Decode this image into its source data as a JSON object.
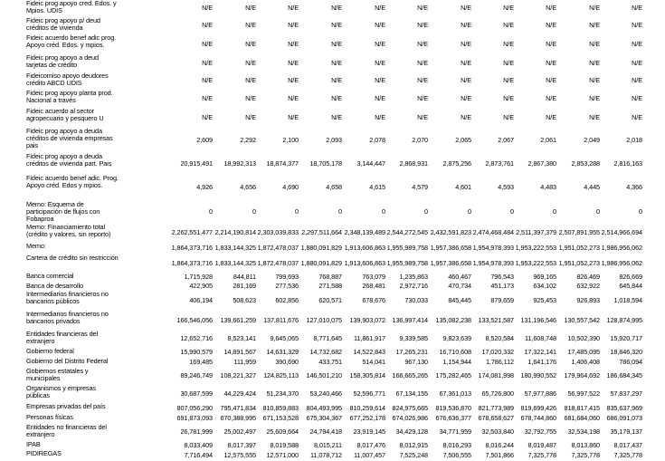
{
  "rows": [
    {
      "label": "Fideic prog apoyo cred. Edos. y Mpios. UDIS",
      "values": [
        "N/E",
        "N/E",
        "N/E",
        "N/E",
        "N/E",
        "N/E",
        "N/E",
        "N/E",
        "N/E",
        "N/E",
        "N/E"
      ]
    },
    {
      "label": "Fideic prog apoyo p/ deud créditos de vivienda",
      "values": [
        "N/E",
        "N/E",
        "N/E",
        "N/E",
        "N/E",
        "N/E",
        "N/E",
        "N/E",
        "N/E",
        "N/E",
        "N/E"
      ]
    },
    {
      "label": "Fideic acuerdo benef adic prog. Apoyo créd. Edos. y mpios.",
      "values": [
        "N/E",
        "N/E",
        "N/E",
        "N/E",
        "N/E",
        "N/E",
        "N/E",
        "N/E",
        "N/E",
        "N/E",
        "N/E"
      ]
    },
    {
      "label": "Fideic prog apoyo a deud tarjetas de crédito",
      "values": [
        "N/E",
        "N/E",
        "N/E",
        "N/E",
        "N/E",
        "N/E",
        "N/E",
        "N/E",
        "N/E",
        "N/E",
        "N/E"
      ]
    },
    {
      "label": "Fideicomiso apoyo deudores crédito ABCD UDIS",
      "values": [
        "N/E",
        "N/E",
        "N/E",
        "N/E",
        "N/E",
        "N/E",
        "N/E",
        "N/E",
        "N/E",
        "N/E",
        "N/E"
      ]
    },
    {
      "label": "Fideic prog apoyo planta prod. Nacional a través",
      "values": [
        "N/E",
        "N/E",
        "N/E",
        "N/E",
        "N/E",
        "N/E",
        "N/E",
        "N/E",
        "N/E",
        "N/E",
        "N/E"
      ]
    },
    {
      "label": "Fideic acuerdo al sector agropecuario y pesquero U",
      "values": [
        "N/E",
        "N/E",
        "N/E",
        "N/E",
        "N/E",
        "N/E",
        "N/E",
        "N/E",
        "N/E",
        "N/E",
        "N/E"
      ]
    },
    {
      "label": "Fideic prog apoyo a deuda créditos de vivienda empresas pais",
      "values": [
        "2,609",
        "2,292",
        "2,100",
        "2,093",
        "2,078",
        "2,070",
        "2,065",
        "2,067",
        "2,061",
        "2,049",
        "2,018"
      ]
    },
    {
      "label": "Fideic prog apoyo a deuda créditos de vivienda part. Pais",
      "values": [
        "20,915,491",
        "18,992,313",
        "18,874,377",
        "18,705,178",
        "3,144,447",
        "2,868,931",
        "2,875,256",
        "2,873,761",
        "2,867,380",
        "2,853,288",
        "2,816,163"
      ]
    },
    {
      "label": "Fideic acuerdo benef adic. Prog. Apoyo créd. Edos y mpios.",
      "values": [
        "4,926",
        "4,656",
        "4,690",
        "4,658",
        "4,615",
        "4,579",
        "4,601",
        "4,593",
        "4,483",
        "4,445",
        "4,366"
      ]
    },
    {
      "label": "Memo: Esquema de participación de flujos con Fobaproa",
      "values": [
        "0",
        "0",
        "0",
        "0",
        "0",
        "0",
        "0",
        "0",
        "0",
        "0",
        "0"
      ]
    },
    {
      "label": "Memo: Financiamiento total (crédito y valores, sin reporto)",
      "values": [
        "2,262,551,477",
        "2,214,190,814",
        "2,303,039,833",
        "2,297,511,664",
        "2,348,139,489",
        "2,544,272,545",
        "2,432,591,823",
        "2,474,468,484",
        "2,511,397,379",
        "2,507,891,955",
        "2,514,966,694"
      ]
    },
    {
      "label": "Memo:",
      "values": [
        "1,864,373,716",
        "1,833,144,325",
        "1,872,478,037",
        "1,880,091,829",
        "1,913,606,863",
        "1,955,989,758",
        "1,957,386,658",
        "1,954,978,393",
        "1,953,222,553",
        "1,951,052,273",
        "1,986,956,062"
      ]
    },
    {
      "label": "Cartera de crédito sin restricción",
      "values": [
        "1,864,373,716",
        "1,833,144,325",
        "1,872,478,037",
        "1,880,091,829",
        "1,913,606,863",
        "1,955,989,758",
        "1,957,386,658",
        "1,954,978,393",
        "1,953,222,553",
        "1,951,052,273",
        "1,986,956,062"
      ]
    },
    {
      "label": "Banca comercial",
      "values": [
        "1,715,928",
        "844,811",
        "799,693",
        "768,887",
        "763,079",
        "1,235,863",
        "460,467",
        "796,543",
        "969,165",
        "826,469",
        "826,669"
      ]
    },
    {
      "label": "Banca de desarrollo",
      "values": [
        "422,905",
        "281,169",
        "277,536",
        "271,588",
        "268,481",
        "2,972,716",
        "470,734",
        "451,173",
        "634,102",
        "632,922",
        "645,844"
      ]
    },
    {
      "label": "Intermediarios financieros no bancarios públicos",
      "values": [
        "406,194",
        "508,623",
        "602,856",
        "620,571",
        "678,676",
        "730,033",
        "845,445",
        "879,659",
        "925,453",
        "926,893",
        "1,018,594"
      ]
    },
    {
      "label": "Intermediarios financieros no bancarios privados",
      "values": [
        "166,546,056",
        "139,661,259",
        "137,811,676",
        "127,010,075",
        "139,903,072",
        "136,997,414",
        "135,082,238",
        "133,521,587",
        "131,196,546",
        "130,557,542",
        "128,874,995"
      ]
    },
    {
      "label": "Entidades financieras del extranjero",
      "values": [
        "12,652,716",
        "8,523,141",
        "9,645,065",
        "8,771,645",
        "11,861,917",
        "9,339,585",
        "9,823,639",
        "8,520,584",
        "11,608,748",
        "10,502,390",
        "15,920,717"
      ]
    },
    {
      "label": "Gobierno federal",
      "values": [
        "15,990,579",
        "14,891,567",
        "14,631,329",
        "14,732,682",
        "14,522,843",
        "17,265,231",
        "16,710,608",
        "17,020,332",
        "17,322,141",
        "17,485,095",
        "18,846,320"
      ]
    },
    {
      "label": "Gobierno del Distrito Federal",
      "values": [
        "169,485",
        "111,959",
        "390,690",
        "433,751",
        "514,041",
        "967,130",
        "1,154,944",
        "1,786,112",
        "1,641,176",
        "1,406,408",
        "786,094"
      ]
    },
    {
      "label": "Gobiernos estatales y municipales",
      "values": [
        "89,246,749",
        "108,221,327",
        "124,825,113",
        "146,501,210",
        "158,305,814",
        "166,665,265",
        "175,282,465",
        "174,081,998",
        "180,990,552",
        "179,964,692",
        "186,684,345"
      ]
    },
    {
      "label": "Organismos y empresas públicas",
      "values": [
        "30,687,599",
        "44,229,424",
        "51,234,370",
        "53,240,466",
        "52,596,771",
        "67,134,155",
        "67,361,013",
        "65,726,800",
        "57,977,886",
        "56,997,522",
        "57,837,297"
      ]
    },
    {
      "label": "Empresas privadas del país",
      "values": [
        "807,056,290",
        "795,471,834",
        "810,859,883",
        "804,493,995",
        "810,259,614",
        "824,975,665",
        "819,536,870",
        "821,773,989",
        "819,699,426",
        "818,817,415",
        "835,637,969"
      ]
    },
    {
      "label": "Personas físicas",
      "values": [
        "691,873,093",
        "670,388,995",
        "671,153,528",
        "675,304,367",
        "677,252,178",
        "674,026,986",
        "676,636,377",
        "678,658,627",
        "678,744,860",
        "681,684,060",
        "686,091,073"
      ]
    },
    {
      "label": "Entidades no financieras del extranjero",
      "values": [
        "26,781,999",
        "25,002,497",
        "25,609,664",
        "24,794,418",
        "23,919,145",
        "34,429,128",
        "34,771,959",
        "32,503,840",
        "32,792,755",
        "32,534,198",
        "35,179,137"
      ]
    },
    {
      "label": "IPAB",
      "values": [
        "8,033,409",
        "8,017,397",
        "8,019,588",
        "8,015,211",
        "8,017,476",
        "8,012,915",
        "8,016,293",
        "8,016,244",
        "8,019,487",
        "8,013,860",
        "8,017,437"
      ]
    },
    {
      "label": "PIDIREGAS",
      "values": [
        "7,716,494",
        "12,575,555",
        "12,571,000",
        "11,078,712",
        "11,007,457",
        "7,525,248",
        "7,506,555",
        "7,501,866",
        "7,325,778",
        "7,325,778",
        "7,325,778"
      ]
    }
  ]
}
